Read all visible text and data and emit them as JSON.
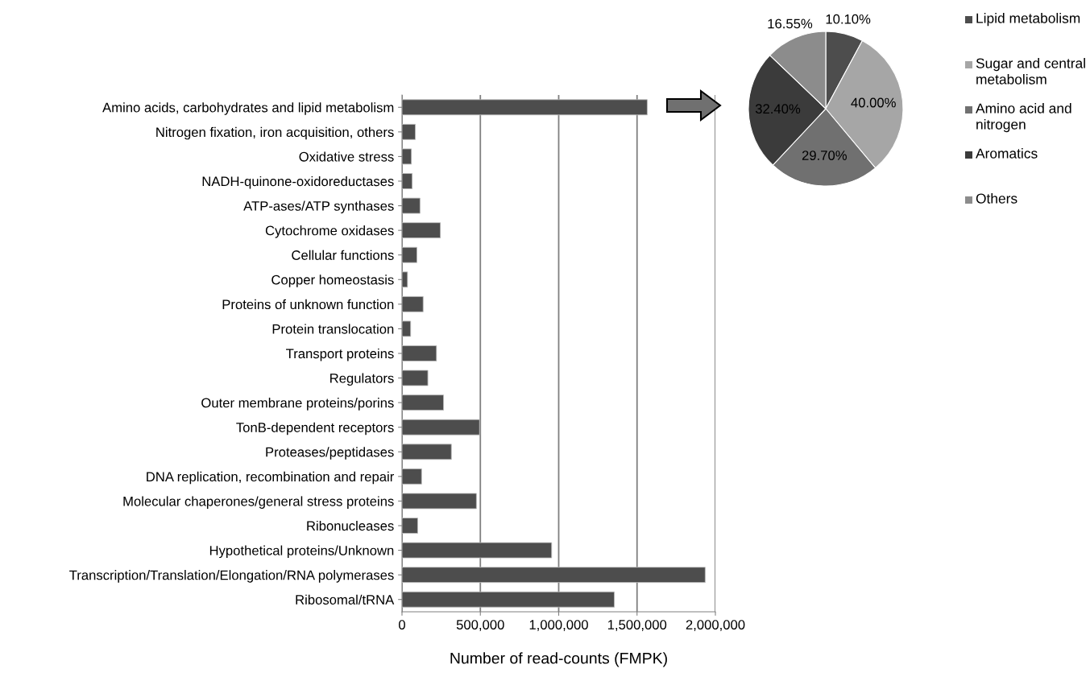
{
  "chart_data": [
    {
      "type": "bar",
      "orientation": "horizontal",
      "xlabel": "Number of read-counts (FMPK)",
      "categories": [
        "Amino acids, carbohydrates and lipid metabolism",
        "Nitrogen fixation, iron acquisition, others",
        "Oxidative stress",
        "NADH-quinone-oxidoreductases",
        "ATP-ases/ATP synthases",
        "Cytochrome oxidases",
        "Cellular functions",
        "Copper homeostasis",
        "Proteins of unknown function",
        "Protein translocation",
        "Transport proteins",
        "Regulators",
        "Outer membrane proteins/porins",
        "TonB-dependent receptors",
        "Proteases/peptidases",
        "DNA replication, recombination and repair",
        "Molecular chaperones/general stress proteins",
        "Ribonucleases",
        "Hypothetical proteins/Unknown",
        "Transcription/Translation/Elongation/RNA polymerases",
        "Ribosomal/tRNA"
      ],
      "values": [
        1565000,
        85000,
        60000,
        65000,
        115000,
        245000,
        95000,
        35000,
        135000,
        55000,
        220000,
        165000,
        265000,
        495000,
        315000,
        125000,
        475000,
        100000,
        955000,
        1935000,
        1355000
      ],
      "color": "#4d4d4d",
      "xlim": [
        0,
        2000000
      ],
      "xticks": [
        0,
        {
          "value": 500000,
          "label": "500,000"
        },
        {
          "value": 1000000,
          "label": "1,000,000"
        },
        {
          "value": 1500000,
          "label": "1,500,000"
        },
        {
          "value": 2000000,
          "label": "2,000,000"
        }
      ],
      "grid": "x"
    },
    {
      "type": "pie",
      "categories": [
        "Lipid metabolism",
        "Sugar and central metabolism",
        "Amino acid and nitrogen",
        "Aromatics",
        "Others"
      ],
      "values": [
        10.1,
        40.0,
        29.7,
        32.4,
        16.55
      ],
      "value_labels": [
        "10.10%",
        "40.00%",
        "29.70%",
        "32.40%",
        "16.55%"
      ],
      "colors": [
        "#4d4d4d",
        "#a6a6a6",
        "#707070",
        "#3b3b3b",
        "#8c8c8c"
      ],
      "legend": "right"
    }
  ]
}
